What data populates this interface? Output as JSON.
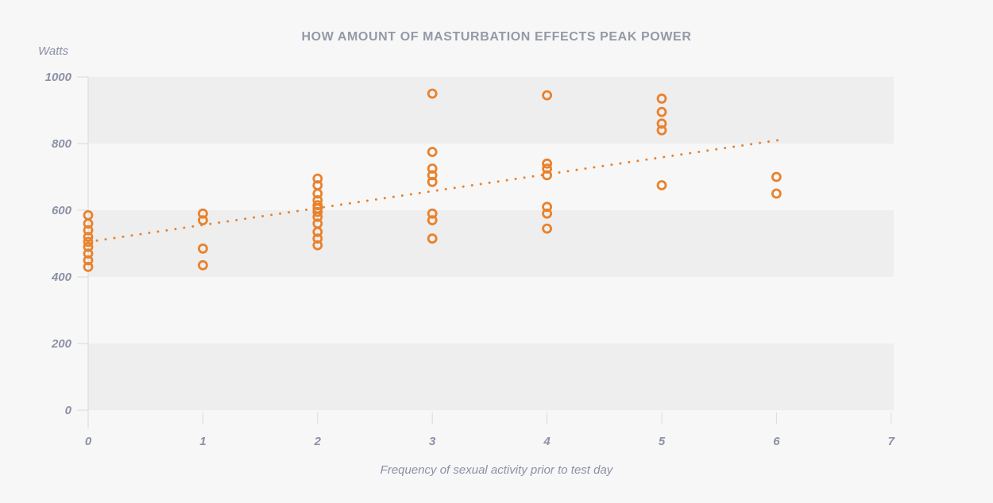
{
  "chart_data": {
    "type": "scatter",
    "title": "HOW AMOUNT OF MASTURBATION EFFECTS PEAK POWER",
    "y_unit_label": "Watts",
    "ylabel": "Watts",
    "xlabel": "Frequency of sexual activity prior to test day",
    "xlim": [
      0,
      7
    ],
    "ylim": [
      0,
      1000
    ],
    "x_ticks": [
      0,
      1,
      2,
      3,
      4,
      5,
      6,
      7
    ],
    "y_ticks": [
      0,
      200,
      400,
      600,
      800,
      1000
    ],
    "grid_bands": [
      [
        0,
        200
      ],
      [
        400,
        600
      ],
      [
        800,
        1000
      ]
    ],
    "legend": "none",
    "marker": {
      "shape": "open-circle",
      "color": "#e8822d",
      "radius": 5
    },
    "trendline": {
      "style": "dotted",
      "color": "#e8822d",
      "x": [
        0,
        6.05
      ],
      "y": [
        505,
        812
      ]
    },
    "points": [
      {
        "x": 0,
        "y": [
          585,
          560,
          540,
          520,
          505,
          490,
          470,
          450,
          430
        ]
      },
      {
        "x": 1,
        "y": [
          590,
          570,
          485,
          435
        ]
      },
      {
        "x": 2,
        "y": [
          695,
          675,
          650,
          630,
          615,
          605,
          595,
          580,
          560,
          535,
          515,
          495
        ]
      },
      {
        "x": 3,
        "y": [
          950,
          775,
          725,
          705,
          685,
          590,
          570,
          515
        ]
      },
      {
        "x": 4,
        "y": [
          945,
          740,
          725,
          705,
          610,
          590,
          545
        ]
      },
      {
        "x": 5,
        "y": [
          935,
          895,
          860,
          840,
          675
        ]
      },
      {
        "x": 6,
        "y": [
          700,
          650
        ]
      }
    ],
    "colors": {
      "background": "#f7f7f7",
      "band": "#eeeeee",
      "axis": "#d9d9d9",
      "tick_label": "#8b90a6",
      "title": "#9599a7",
      "accent": "#e8822d"
    }
  }
}
